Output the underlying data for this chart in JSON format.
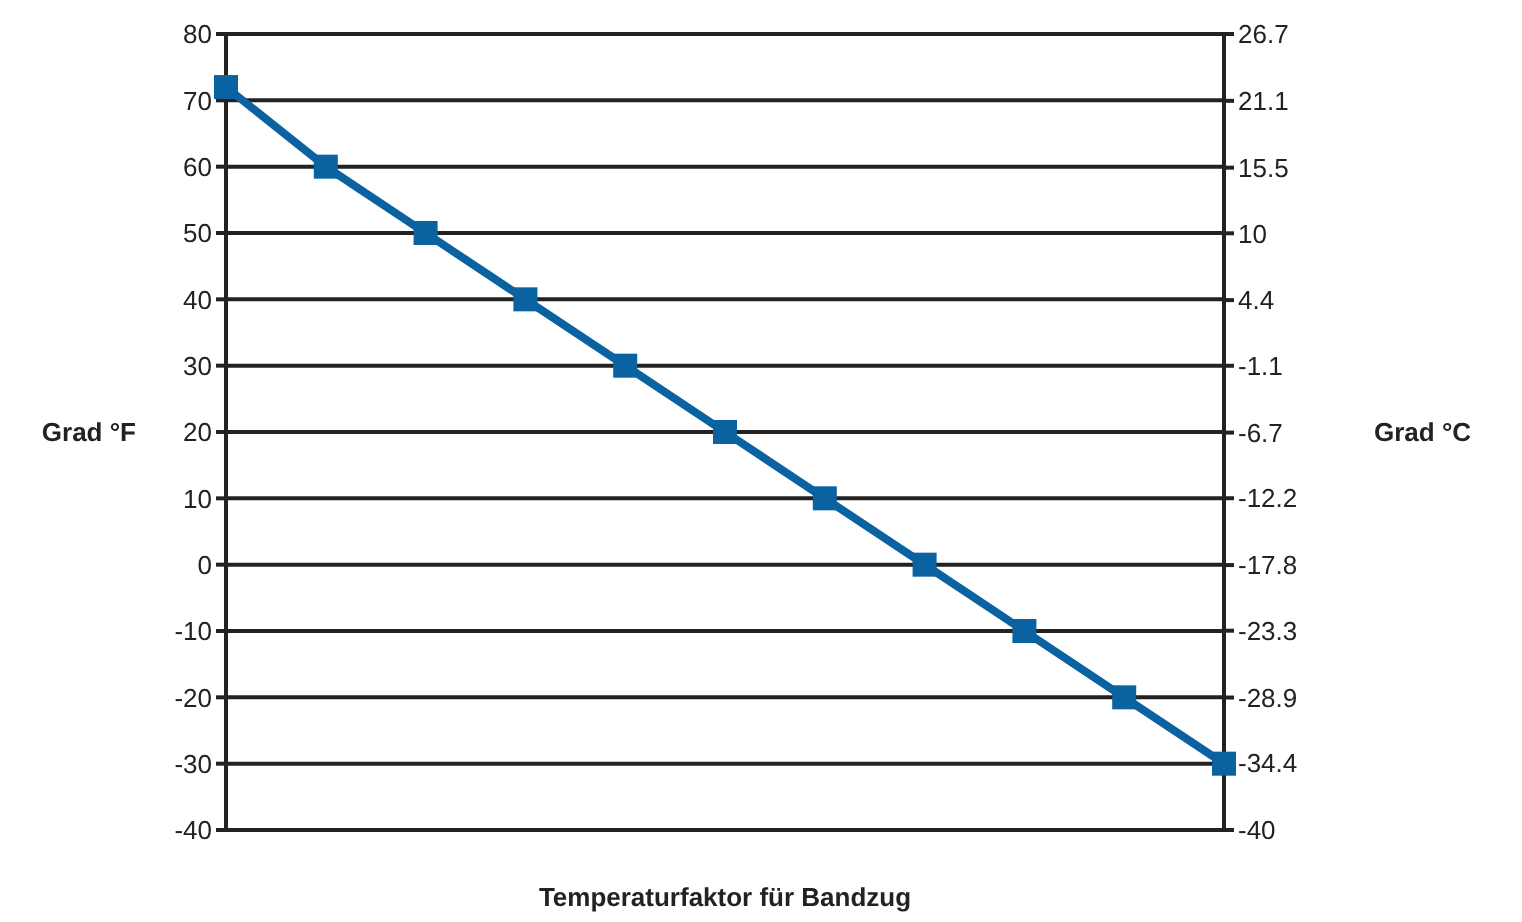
{
  "chart_data": {
    "type": "line",
    "xlabel": "Temperaturfaktor für Bandzug",
    "ylabel": "Grad °F",
    "y2label": "Grad °C",
    "categories": [
      null,
      null,
      null,
      null,
      null,
      null,
      null,
      null,
      null,
      null,
      null
    ],
    "series": [
      {
        "color": "#0b62a0",
        "values": [
          72,
          60,
          50,
          40,
          30,
          20,
          10,
          0,
          -10,
          -20,
          -30
        ]
      }
    ],
    "ylim": [
      -40,
      80
    ],
    "yticks": [
      -40,
      -30,
      -20,
      -10,
      0,
      10,
      20,
      30,
      40,
      50,
      60,
      70,
      80
    ],
    "y2lim": [
      -40,
      26.7
    ],
    "y2ticks": [
      -40,
      -34.4,
      -28.9,
      -23.3,
      -17.8,
      -12.2,
      -6.7,
      -1.1,
      4.4,
      10,
      15.5,
      21.1,
      26.7
    ],
    "grid": "y",
    "marker": "square",
    "line_style": "solid"
  }
}
